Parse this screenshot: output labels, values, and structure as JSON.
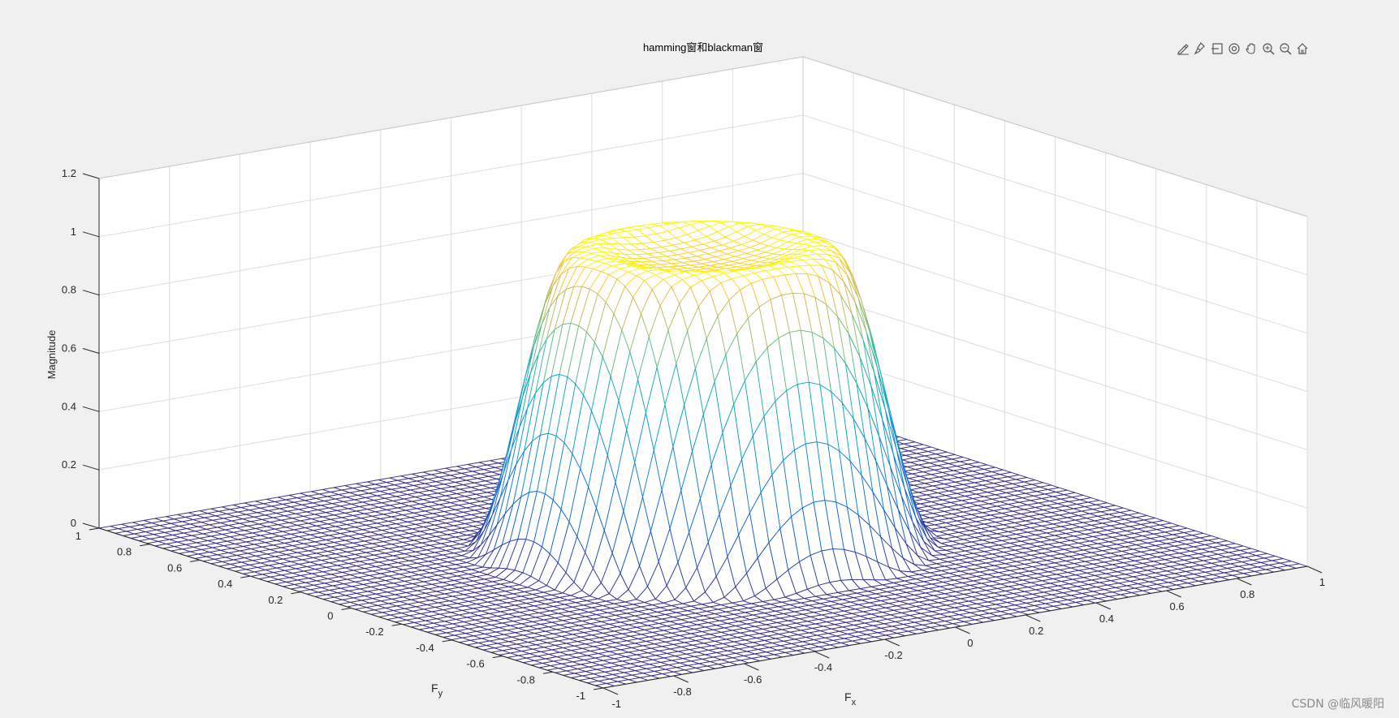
{
  "figure": {
    "toolbar": [
      {
        "name": "edit-plot-icon",
        "label": "Edit"
      },
      {
        "name": "brush-icon",
        "label": "Brush"
      },
      {
        "name": "datatip-icon",
        "label": "Data Tips"
      },
      {
        "name": "rotate-3d-icon",
        "label": "Rotate 3D"
      },
      {
        "name": "pan-icon",
        "label": "Pan"
      },
      {
        "name": "zoom-in-icon",
        "label": "Zoom In"
      },
      {
        "name": "zoom-out-icon",
        "label": "Zoom Out"
      },
      {
        "name": "home-icon",
        "label": "Restore View"
      }
    ],
    "watermark": "CSDN @临风暖阳"
  },
  "chart_data": {
    "type": "surface",
    "title": "hamming窗和blackman窗",
    "xlabel": "F",
    "xlabel_sub": "x",
    "ylabel": "F",
    "ylabel_sub": "y",
    "zlabel": "Magnitude",
    "xlim": [
      -1,
      1
    ],
    "ylim": [
      -1,
      1
    ],
    "zlim": [
      0,
      1.2
    ],
    "xticks": [
      "-1",
      "-0.8",
      "-0.6",
      "-0.4",
      "-0.2",
      "0",
      "0.2",
      "0.4",
      "0.6",
      "0.8",
      "1"
    ],
    "yticks": [
      "-1",
      "-0.8",
      "-0.6",
      "-0.4",
      "-0.2",
      "0",
      "0.2",
      "0.4",
      "0.6",
      "0.8",
      "1"
    ],
    "zticks": [
      "0",
      "0.2",
      "0.4",
      "0.6",
      "0.8",
      "1",
      "1.2"
    ],
    "grid": true,
    "colormap": "parula",
    "grid_points": 64,
    "surface": {
      "description_of_shape": "radially symmetric passband, flat top near 1.0 with slight ripple, falling to 0 beyond radius ~0.45",
      "passband_magnitude": 1.0,
      "center_magnitude": 0.98,
      "ring_peak_magnitude": 1.03,
      "transition_start_radius": 0.3,
      "transition_end_radius": 0.55,
      "stopband_magnitude": 0.0
    }
  }
}
